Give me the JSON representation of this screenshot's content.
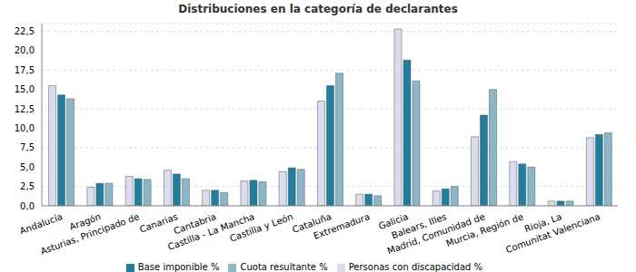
{
  "chart_data": {
    "type": "bar",
    "title": "Distribuciones en la categoría de declarantes",
    "categories": [
      "Andalucía",
      "Aragón",
      "Asturias, Principado de",
      "Canarias",
      "Cantabria",
      "Castilla - La Mancha",
      "Castilla y León",
      "Cataluña",
      "Extremadura",
      "Galicia",
      "Balears, Illes",
      "Madrid, Comunidad de",
      "Murcia, Región de",
      "Rioja, La",
      "Comunitat Valenciana"
    ],
    "series": [
      {
        "name": "Personas con discapacidad %",
        "color": "#dcdcf0",
        "values": [
          15.5,
          2.4,
          3.8,
          4.6,
          2.0,
          3.2,
          4.4,
          13.5,
          1.5,
          22.8,
          1.9,
          8.9,
          5.7,
          0.6,
          8.8
        ]
      },
      {
        "name": "Base imponible %",
        "color": "#1f7fa0",
        "values": [
          14.3,
          2.9,
          3.5,
          4.1,
          2.0,
          3.3,
          4.9,
          15.5,
          1.5,
          18.8,
          2.2,
          11.7,
          5.4,
          0.6,
          9.2
        ]
      },
      {
        "name": "Cuota resultante %",
        "color": "#8ab8c8",
        "values": [
          13.8,
          2.9,
          3.4,
          3.5,
          1.7,
          3.1,
          4.7,
          17.1,
          1.3,
          16.1,
          2.5,
          15.0,
          5.0,
          0.6,
          9.4
        ]
      }
    ],
    "ylim": [
      0,
      23.5
    ],
    "yticks": [
      {
        "value": 0,
        "label": "0,0"
      },
      {
        "value": 2.5,
        "label": "2,5"
      },
      {
        "value": 5,
        "label": "5,0"
      },
      {
        "value": 7.5,
        "label": "7,5"
      },
      {
        "value": 10,
        "label": "10,0"
      },
      {
        "value": 12.5,
        "label": "12,5"
      },
      {
        "value": 15,
        "label": "15,0"
      },
      {
        "value": 17.5,
        "label": "17,5"
      },
      {
        "value": 20,
        "label": "20,0"
      },
      {
        "value": 22.5,
        "label": "22,5"
      }
    ],
    "grid": true,
    "legend": "bottom"
  }
}
